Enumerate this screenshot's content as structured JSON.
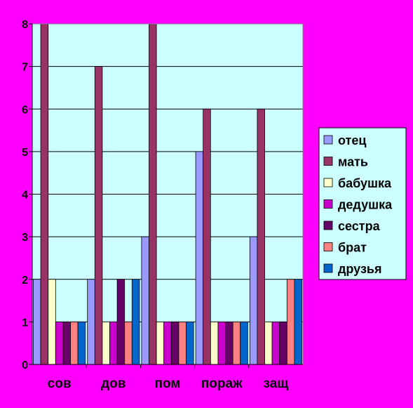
{
  "chart_data": {
    "type": "bar",
    "categories": [
      "сов",
      "дов",
      "пом",
      "пораж",
      "защ"
    ],
    "series": [
      {
        "name": "отец",
        "color": "#9999ff",
        "values": [
          2,
          2,
          3,
          5,
          3
        ]
      },
      {
        "name": "мать",
        "color": "#993366",
        "values": [
          8,
          7,
          8,
          6,
          6
        ]
      },
      {
        "name": "бабушка",
        "color": "#ffffcc",
        "values": [
          2,
          1,
          1,
          1,
          1
        ]
      },
      {
        "name": "дедушка",
        "color": "#cc00cc",
        "values": [
          1,
          1,
          1,
          1,
          1
        ]
      },
      {
        "name": "сестра",
        "color": "#660066",
        "values": [
          1,
          2,
          1,
          1,
          1
        ]
      },
      {
        "name": "брат",
        "color": "#ff8080",
        "values": [
          1,
          1,
          1,
          1,
          2
        ]
      },
      {
        "name": "друзья",
        "color": "#0066cc",
        "values": [
          1,
          2,
          1,
          1,
          2
        ]
      }
    ],
    "ylim": [
      0,
      8
    ],
    "yticks": [
      "0",
      "1",
      "2",
      "3",
      "4",
      "5",
      "6",
      "7",
      "8"
    ],
    "grid": true,
    "legend_position": "right",
    "plot_background": "#ccffff"
  }
}
